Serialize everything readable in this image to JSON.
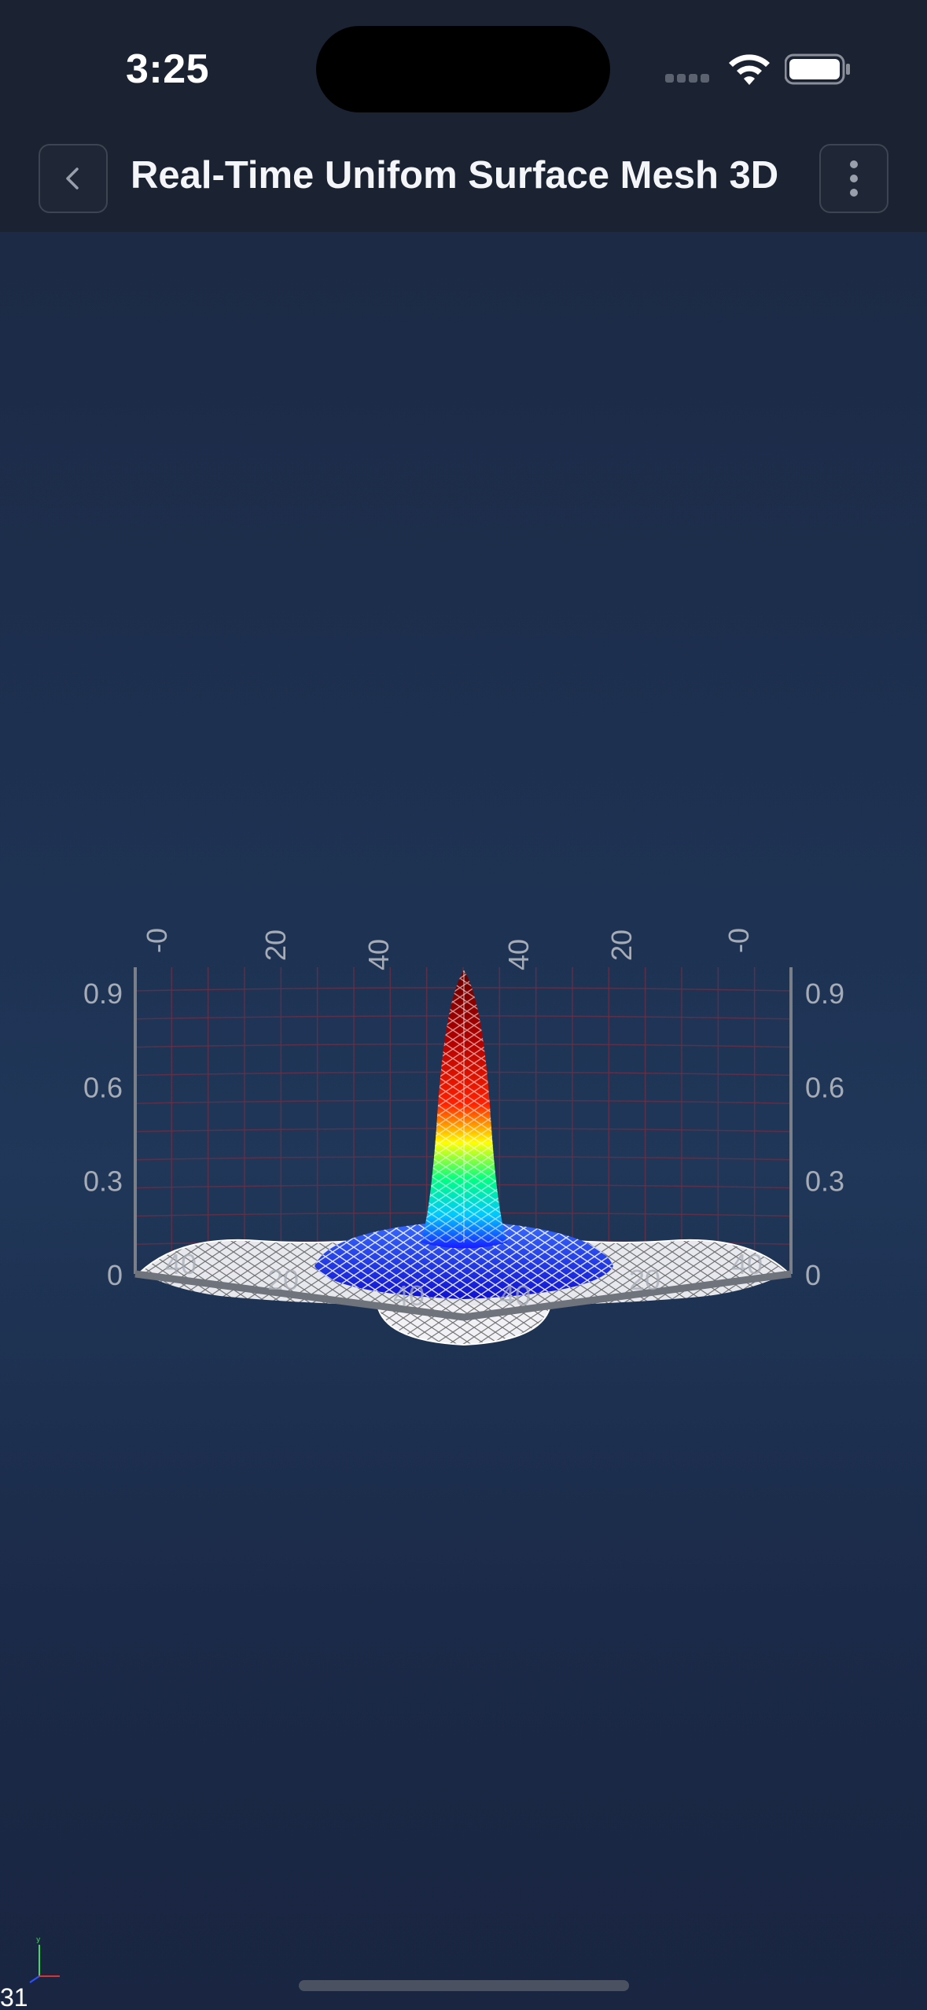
{
  "status_bar": {
    "time": "3:25",
    "icons": [
      "signal-dots-icon",
      "wifi-icon",
      "battery-icon"
    ]
  },
  "header": {
    "title": "Real-Time Unifom Surface Mesh 3D",
    "back_icon": "chevron-left-icon",
    "menu_icon": "more-vertical-icon"
  },
  "chart_data": {
    "type": "surface-mesh-3d",
    "title": "",
    "z_ticks_left": [
      "0.9",
      "0.6",
      "0.3",
      "0"
    ],
    "z_ticks_right": [
      "0.9",
      "0.6",
      "0.3",
      "0"
    ],
    "x_ticks_back": [
      "-0",
      "20",
      "40"
    ],
    "y_ticks_back": [
      "40",
      "20",
      "-0"
    ],
    "front_ticks": [
      "40",
      "20",
      "40",
      "40",
      "20",
      "40"
    ],
    "zlim": [
      0,
      1
    ],
    "peak_value": 1.0,
    "colormap": [
      "#1a1aff",
      "#00c8ff",
      "#00ff80",
      "#ffff00",
      "#ff2000",
      "#8b0000"
    ],
    "grid": true
  },
  "footer": {
    "fps_label": "31",
    "gizmo_icon": "xyz-axes-icon"
  },
  "colors": {
    "background": "#1e3253",
    "topbar": "#1b2231",
    "mesh_line": "#ffffff",
    "grid_line": "#6a2f45"
  }
}
